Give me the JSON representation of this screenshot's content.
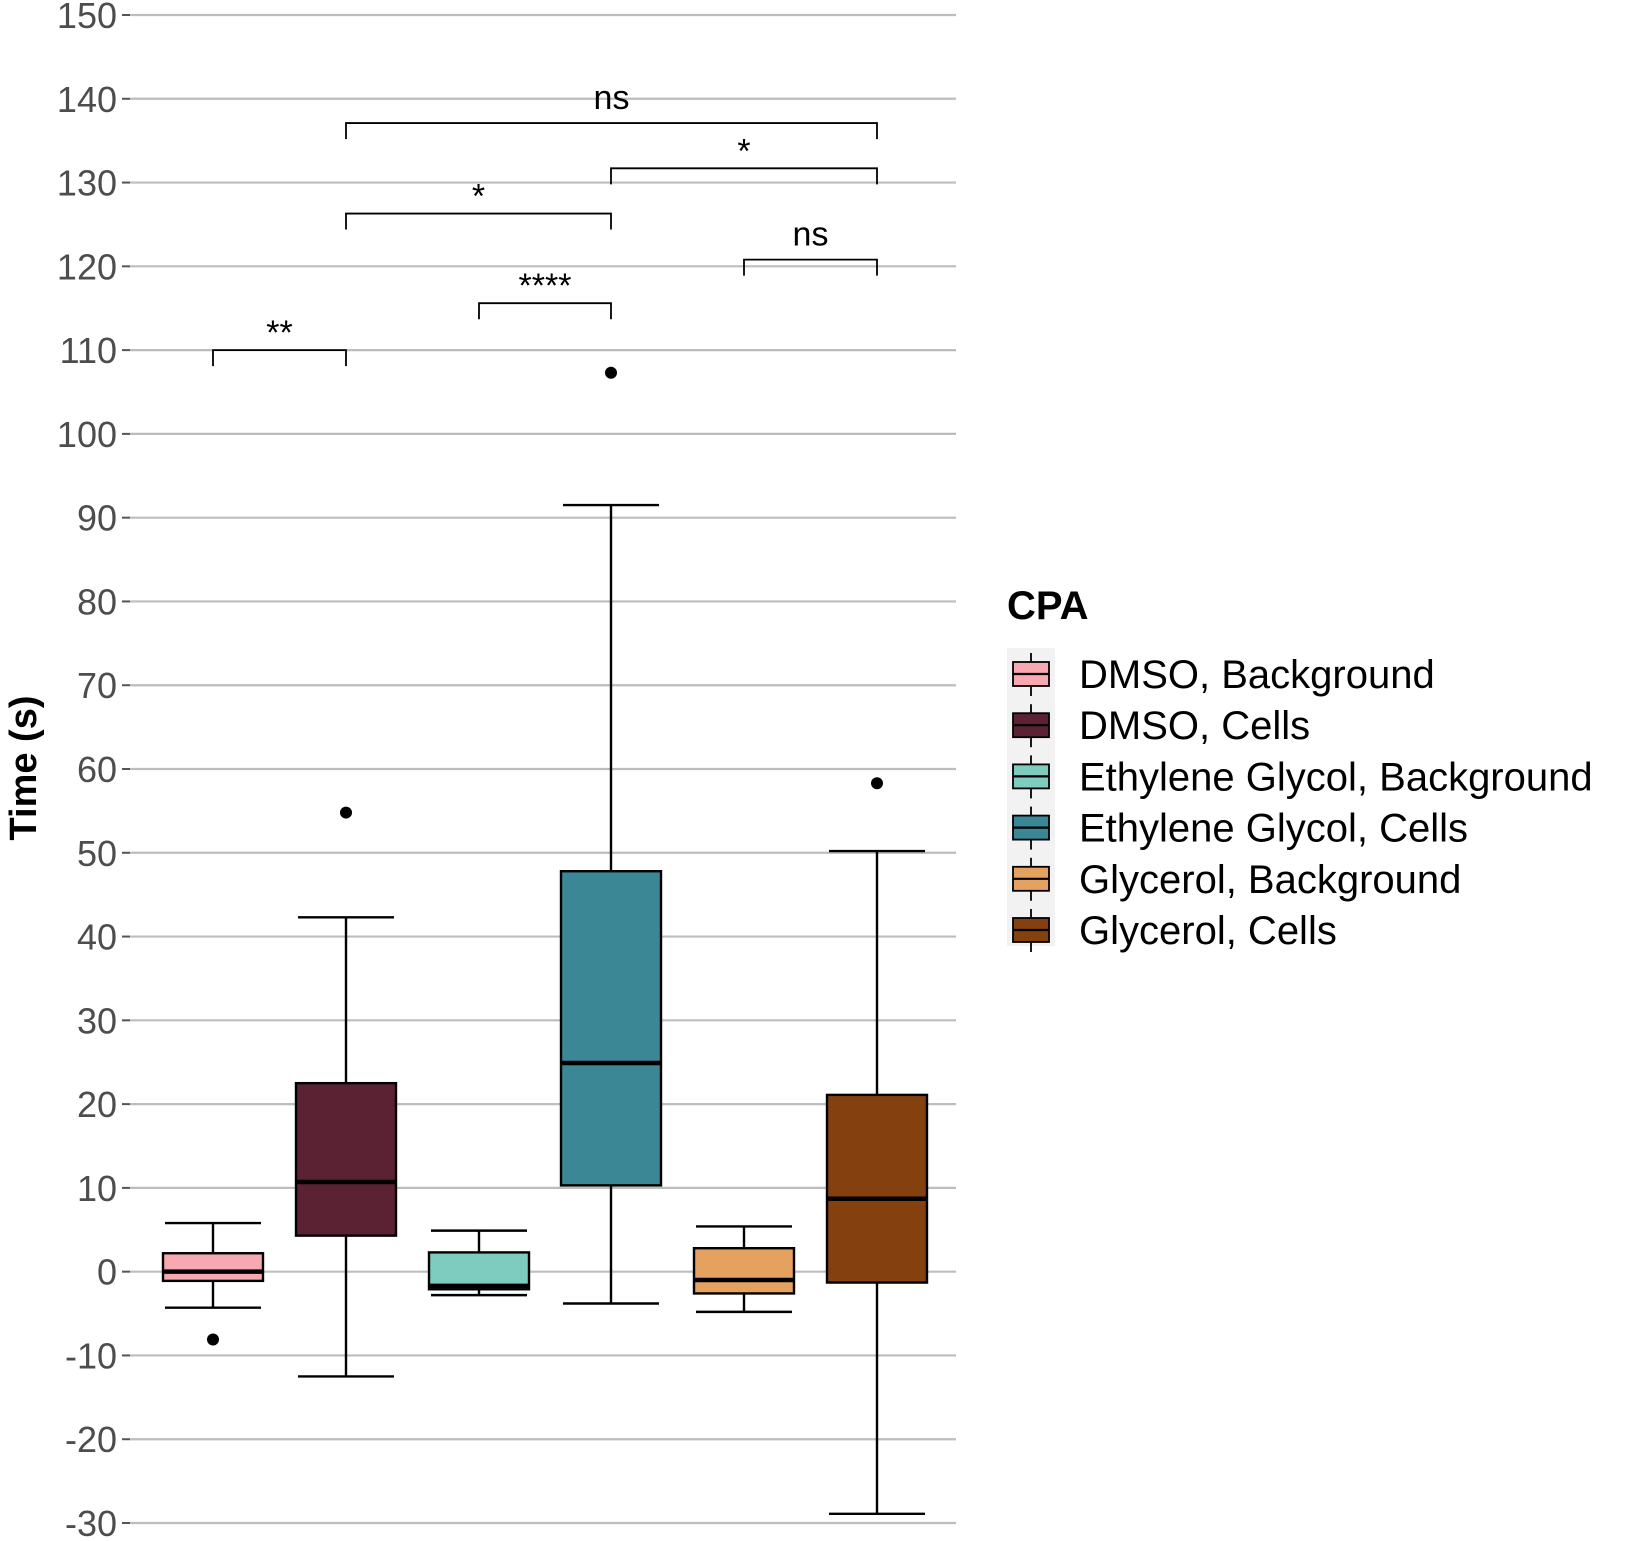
{
  "chart_data": {
    "type": "box",
    "ylabel": "Time (s)",
    "ylim": [
      -30,
      150
    ],
    "y_ticks": [
      150,
      140,
      130,
      120,
      110,
      100,
      90,
      80,
      70,
      60,
      50,
      40,
      30,
      20,
      10,
      0,
      -10,
      -20,
      -30
    ],
    "grid": "horizontal major",
    "legend": {
      "title": "CPA",
      "placement": "right"
    },
    "series": [
      {
        "name": "DMSO, Background",
        "color": "#f7a8b0",
        "whisker_low": -4.3,
        "q1": -1.1,
        "median": 0.0,
        "q3": 2.2,
        "whisker_high": 5.8,
        "outliers": [
          -8.1
        ]
      },
      {
        "name": "DMSO, Cells",
        "color": "#5a2233",
        "whisker_low": -12.5,
        "q1": 4.3,
        "median": 10.7,
        "q3": 22.5,
        "whisker_high": 42.3,
        "outliers": [
          54.8
        ]
      },
      {
        "name": "Ethylene Glycol, Background",
        "color": "#7ecbbf",
        "whisker_low": -2.8,
        "q1": -2.1,
        "median": -1.7,
        "q3": 2.3,
        "whisker_high": 4.9,
        "outliers": []
      },
      {
        "name": "Ethylene Glycol, Cells",
        "color": "#3b8796",
        "whisker_low": -3.8,
        "q1": 10.3,
        "median": 24.9,
        "q3": 47.8,
        "whisker_high": 91.5,
        "outliers": [
          107.3
        ]
      },
      {
        "name": "Glycerol, Background",
        "color": "#e4a160",
        "whisker_low": -4.8,
        "q1": -2.6,
        "median": -1.0,
        "q3": 2.8,
        "whisker_high": 5.4,
        "outliers": []
      },
      {
        "name": "Glycerol, Cells",
        "color": "#84400f",
        "whisker_low": -28.9,
        "q1": -1.3,
        "median": 8.7,
        "q3": 21.1,
        "whisker_high": 50.2,
        "outliers": [
          58.3
        ]
      }
    ],
    "significance": [
      {
        "from": 1,
        "to": 2,
        "y": 110,
        "label": "**"
      },
      {
        "from": 3,
        "to": 4,
        "y": 115.6,
        "label": "****"
      },
      {
        "from": 5,
        "to": 6,
        "y": 120.8,
        "label": "ns"
      },
      {
        "from": 2,
        "to": 4,
        "y": 126.3,
        "label": "*"
      },
      {
        "from": 4,
        "to": 6,
        "y": 131.7,
        "label": "*"
      },
      {
        "from": 2,
        "to": 6,
        "y": 137.1,
        "label": "ns"
      }
    ]
  }
}
